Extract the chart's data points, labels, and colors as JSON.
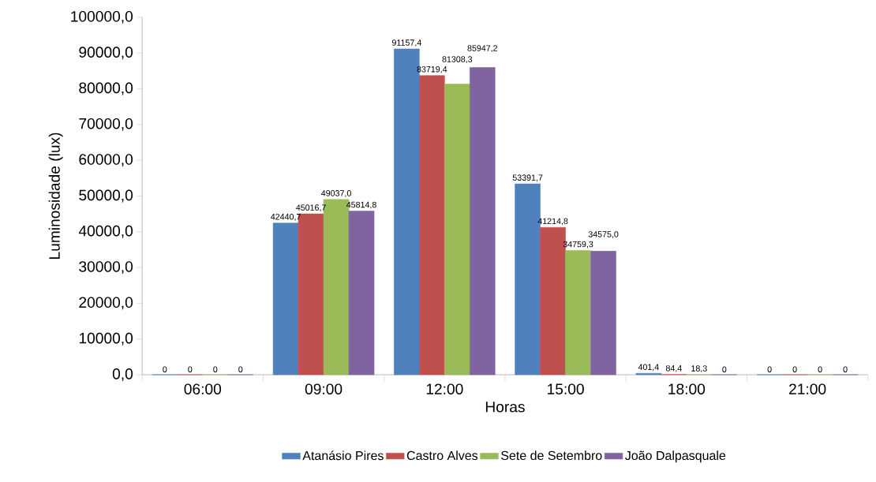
{
  "chart_data": {
    "type": "bar",
    "xlabel": "Horas",
    "ylabel": "Luminosidade (lux)",
    "categories": [
      "06:00",
      "09:00",
      "12:00",
      "15:00",
      "18:00",
      "21:00"
    ],
    "series": [
      {
        "name": "Atanásio Pires",
        "color": "#4f81bd",
        "values": [
          0,
          42440.7,
          91157.4,
          53391.7,
          401.4,
          0
        ],
        "value_labels": [
          "0",
          "42440,7",
          "91157,4",
          "53391,7",
          "401,4",
          "0"
        ]
      },
      {
        "name": "Castro Alves",
        "color": "#c0504d",
        "values": [
          0,
          45016.7,
          83719.4,
          41214.8,
          84.4,
          0
        ],
        "value_labels": [
          "0",
          "45016,7",
          "83719,4",
          "41214,8",
          "84,4",
          "0"
        ]
      },
      {
        "name": "Sete de Setembro",
        "color": "#9bbb59",
        "values": [
          0,
          49037.0,
          81308.3,
          34759.3,
          18.3,
          0
        ],
        "value_labels": [
          "0",
          "49037,0",
          "81308,3",
          "34759,3",
          "18,3",
          "0"
        ]
      },
      {
        "name": "João Dalpasquale",
        "color": "#8064a2",
        "values": [
          0,
          45814.8,
          85947.2,
          34575.0,
          0,
          0
        ],
        "value_labels": [
          "0",
          "45814,8",
          "85947,2",
          "34575,0",
          "0",
          "0"
        ]
      }
    ],
    "ylim": [
      0,
      100000
    ],
    "yticks": [
      {
        "value": 0,
        "label": "0,0"
      },
      {
        "value": 10000,
        "label": "10000,0"
      },
      {
        "value": 20000,
        "label": "20000,0"
      },
      {
        "value": 30000,
        "label": "30000,0"
      },
      {
        "value": 40000,
        "label": "40000,0"
      },
      {
        "value": 50000,
        "label": "50000,0"
      },
      {
        "value": 60000,
        "label": "60000,0"
      },
      {
        "value": 70000,
        "label": "70000,0"
      },
      {
        "value": 80000,
        "label": "80000,0"
      },
      {
        "value": 90000,
        "label": "90000,0"
      },
      {
        "value": 100000,
        "label": "100000,0"
      }
    ],
    "grid": false,
    "legend": "bottom"
  }
}
